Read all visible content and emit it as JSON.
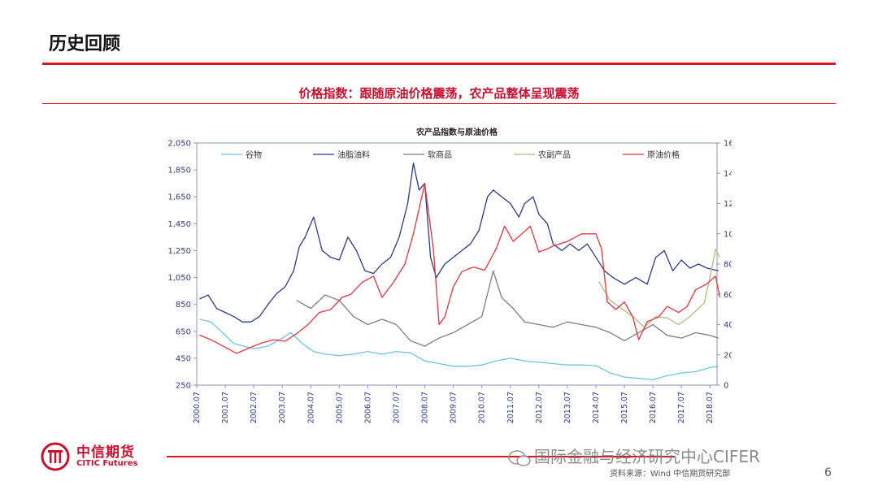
{
  "header": {
    "title": "历史回顾",
    "subtitle": "价格指数：跟随原油价格震荡，农产品整体呈现震荡"
  },
  "chart_data": {
    "type": "line",
    "title": "农产品指数与原油价格",
    "x": [
      "2000.07",
      "2001.07",
      "2002.07",
      "2003.07",
      "2004.07",
      "2005.07",
      "2006.07",
      "2007.07",
      "2008.07",
      "2009.07",
      "2010.07",
      "2011.07",
      "2012.07",
      "2013.07",
      "2014.07",
      "2015.07",
      "2016.07",
      "2017.07",
      "2018.07"
    ],
    "x_start": "2000.07",
    "x_end": "2018.10",
    "ylim_left": [
      250,
      2050
    ],
    "yticks_left": [
      "2,050",
      "1,850",
      "1,650",
      "1,450",
      "1,250",
      "1,050",
      "850",
      "650",
      "450",
      "250"
    ],
    "ylim_right": [
      0,
      160
    ],
    "yticks_right": [
      "160",
      "140",
      "120",
      "100",
      "80",
      "60",
      "40",
      "20",
      "0"
    ],
    "legend_position": "top",
    "series": [
      {
        "name": "谷物",
        "color": "#6cc6dd",
        "axis": "left",
        "values": [
          [
            2000.6,
            740
          ],
          [
            2001.0,
            720
          ],
          [
            2001.4,
            640
          ],
          [
            2001.8,
            560
          ],
          [
            2002.5,
            520
          ],
          [
            2003.0,
            540
          ],
          [
            2003.5,
            600
          ],
          [
            2003.8,
            640
          ],
          [
            2004.2,
            560
          ],
          [
            2004.6,
            500
          ],
          [
            2005.0,
            480
          ],
          [
            2005.5,
            470
          ],
          [
            2006.0,
            480
          ],
          [
            2006.5,
            500
          ],
          [
            2007.0,
            480
          ],
          [
            2007.5,
            500
          ],
          [
            2008.0,
            490
          ],
          [
            2008.5,
            430
          ],
          [
            2009.0,
            410
          ],
          [
            2009.5,
            390
          ],
          [
            2010.0,
            390
          ],
          [
            2010.5,
            400
          ],
          [
            2011.0,
            430
          ],
          [
            2011.5,
            450
          ],
          [
            2012.0,
            430
          ],
          [
            2012.5,
            420
          ],
          [
            2013.0,
            410
          ],
          [
            2013.5,
            400
          ],
          [
            2014.0,
            400
          ],
          [
            2014.5,
            395
          ],
          [
            2015.0,
            340
          ],
          [
            2015.5,
            310
          ],
          [
            2016.0,
            300
          ],
          [
            2016.5,
            290
          ],
          [
            2017.0,
            320
          ],
          [
            2017.5,
            340
          ],
          [
            2018.0,
            350
          ],
          [
            2018.5,
            380
          ],
          [
            2018.8,
            390
          ]
        ]
      },
      {
        "name": "油脂油料",
        "color": "#2a3b8c",
        "axis": "left",
        "values": [
          [
            2000.6,
            890
          ],
          [
            2000.9,
            920
          ],
          [
            2001.2,
            820
          ],
          [
            2001.5,
            790
          ],
          [
            2001.8,
            760
          ],
          [
            2002.1,
            720
          ],
          [
            2002.4,
            720
          ],
          [
            2002.7,
            760
          ],
          [
            2003.0,
            850
          ],
          [
            2003.3,
            930
          ],
          [
            2003.6,
            980
          ],
          [
            2003.9,
            1100
          ],
          [
            2004.1,
            1280
          ],
          [
            2004.3,
            1350
          ],
          [
            2004.6,
            1500
          ],
          [
            2004.9,
            1250
          ],
          [
            2005.2,
            1200
          ],
          [
            2005.5,
            1180
          ],
          [
            2005.8,
            1350
          ],
          [
            2006.1,
            1250
          ],
          [
            2006.4,
            1100
          ],
          [
            2006.7,
            1080
          ],
          [
            2007.0,
            1150
          ],
          [
            2007.3,
            1200
          ],
          [
            2007.6,
            1350
          ],
          [
            2007.9,
            1600
          ],
          [
            2008.1,
            1900
          ],
          [
            2008.3,
            1700
          ],
          [
            2008.5,
            1750
          ],
          [
            2008.7,
            1200
          ],
          [
            2008.9,
            1050
          ],
          [
            2009.2,
            1150
          ],
          [
            2009.5,
            1200
          ],
          [
            2009.8,
            1250
          ],
          [
            2010.1,
            1300
          ],
          [
            2010.4,
            1400
          ],
          [
            2010.7,
            1650
          ],
          [
            2010.9,
            1700
          ],
          [
            2011.2,
            1650
          ],
          [
            2011.5,
            1600
          ],
          [
            2011.8,
            1500
          ],
          [
            2012.0,
            1600
          ],
          [
            2012.3,
            1650
          ],
          [
            2012.5,
            1520
          ],
          [
            2012.8,
            1450
          ],
          [
            2013.0,
            1300
          ],
          [
            2013.3,
            1250
          ],
          [
            2013.6,
            1300
          ],
          [
            2013.9,
            1250
          ],
          [
            2014.2,
            1300
          ],
          [
            2014.5,
            1200
          ],
          [
            2014.8,
            1100
          ],
          [
            2015.1,
            1050
          ],
          [
            2015.5,
            1000
          ],
          [
            2015.9,
            1050
          ],
          [
            2016.3,
            1000
          ],
          [
            2016.6,
            1200
          ],
          [
            2016.9,
            1250
          ],
          [
            2017.2,
            1100
          ],
          [
            2017.5,
            1180
          ],
          [
            2017.8,
            1120
          ],
          [
            2018.1,
            1150
          ],
          [
            2018.4,
            1120
          ],
          [
            2018.8,
            1100
          ]
        ]
      },
      {
        "name": "软商品",
        "color": "#7f7f7f",
        "axis": "left",
        "values": [
          [
            2004.0,
            880
          ],
          [
            2004.5,
            820
          ],
          [
            2005.0,
            920
          ],
          [
            2005.5,
            880
          ],
          [
            2006.0,
            760
          ],
          [
            2006.5,
            700
          ],
          [
            2007.0,
            740
          ],
          [
            2007.5,
            700
          ],
          [
            2008.0,
            580
          ],
          [
            2008.5,
            540
          ],
          [
            2009.0,
            600
          ],
          [
            2009.5,
            640
          ],
          [
            2010.0,
            700
          ],
          [
            2010.5,
            760
          ],
          [
            2010.9,
            1100
          ],
          [
            2011.2,
            900
          ],
          [
            2011.6,
            820
          ],
          [
            2012.0,
            720
          ],
          [
            2012.5,
            700
          ],
          [
            2013.0,
            680
          ],
          [
            2013.5,
            720
          ],
          [
            2014.0,
            700
          ],
          [
            2014.5,
            680
          ],
          [
            2015.0,
            640
          ],
          [
            2015.5,
            580
          ],
          [
            2016.0,
            640
          ],
          [
            2016.5,
            700
          ],
          [
            2017.0,
            620
          ],
          [
            2017.5,
            600
          ],
          [
            2018.0,
            640
          ],
          [
            2018.5,
            620
          ],
          [
            2018.8,
            600
          ]
        ]
      },
      {
        "name": "农副产品",
        "color": "#a9c07a",
        "axis": "left",
        "values": [
          [
            2014.6,
            1020
          ],
          [
            2015.0,
            880
          ],
          [
            2015.4,
            820
          ],
          [
            2015.8,
            760
          ],
          [
            2016.2,
            680
          ],
          [
            2016.6,
            760
          ],
          [
            2017.0,
            750
          ],
          [
            2017.4,
            700
          ],
          [
            2017.8,
            760
          ],
          [
            2018.1,
            820
          ],
          [
            2018.3,
            860
          ],
          [
            2018.5,
            1050
          ],
          [
            2018.7,
            1260
          ],
          [
            2018.85,
            1200
          ]
        ]
      },
      {
        "name": "原油价格",
        "color": "#e8333c",
        "axis": "right",
        "values": [
          [
            2000.6,
            33
          ],
          [
            2001.0,
            30
          ],
          [
            2001.5,
            25
          ],
          [
            2001.9,
            21
          ],
          [
            2002.4,
            25
          ],
          [
            2002.8,
            28
          ],
          [
            2003.2,
            30
          ],
          [
            2003.6,
            29
          ],
          [
            2004.0,
            34
          ],
          [
            2004.4,
            40
          ],
          [
            2004.8,
            48
          ],
          [
            2005.2,
            50
          ],
          [
            2005.6,
            58
          ],
          [
            2005.9,
            60
          ],
          [
            2006.3,
            68
          ],
          [
            2006.7,
            72
          ],
          [
            2007.0,
            58
          ],
          [
            2007.4,
            68
          ],
          [
            2007.8,
            80
          ],
          [
            2008.1,
            100
          ],
          [
            2008.5,
            133
          ],
          [
            2008.8,
            90
          ],
          [
            2009.0,
            40
          ],
          [
            2009.2,
            45
          ],
          [
            2009.5,
            65
          ],
          [
            2009.8,
            75
          ],
          [
            2010.2,
            78
          ],
          [
            2010.6,
            76
          ],
          [
            2011.0,
            90
          ],
          [
            2011.3,
            105
          ],
          [
            2011.6,
            95
          ],
          [
            2011.9,
            100
          ],
          [
            2012.2,
            105
          ],
          [
            2012.5,
            88
          ],
          [
            2012.8,
            90
          ],
          [
            2013.0,
            92
          ],
          [
            2013.5,
            95
          ],
          [
            2014.0,
            100
          ],
          [
            2014.5,
            100
          ],
          [
            2014.7,
            90
          ],
          [
            2014.9,
            55
          ],
          [
            2015.2,
            50
          ],
          [
            2015.5,
            55
          ],
          [
            2015.8,
            45
          ],
          [
            2016.0,
            30
          ],
          [
            2016.3,
            42
          ],
          [
            2016.7,
            45
          ],
          [
            2017.0,
            52
          ],
          [
            2017.4,
            48
          ],
          [
            2017.7,
            52
          ],
          [
            2018.0,
            63
          ],
          [
            2018.4,
            67
          ],
          [
            2018.7,
            72
          ],
          [
            2018.85,
            58
          ]
        ]
      }
    ]
  },
  "branding": {
    "logo_cn": "中信期货",
    "logo_en": "CITIC Futures"
  },
  "footer": {
    "watermark": "国际金融与经济研究中心CIFER",
    "source": "资料来源：Wind   中信期货研究部",
    "page_number": "6"
  }
}
